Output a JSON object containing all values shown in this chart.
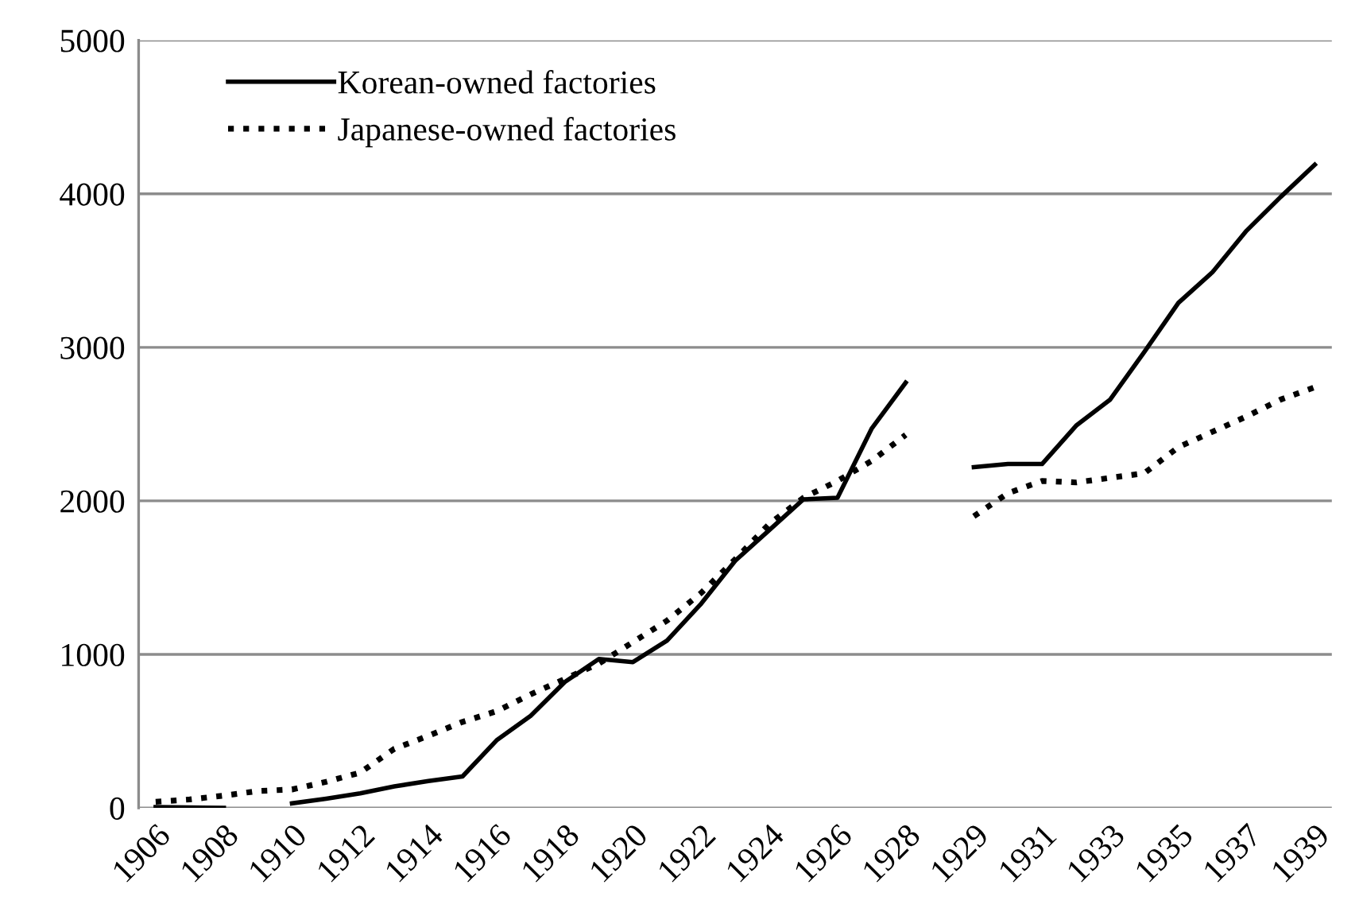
{
  "chart_data": {
    "type": "line",
    "categories": [
      "1906",
      null,
      "1908",
      null,
      "1910",
      null,
      "1912",
      null,
      "1914",
      null,
      "1916",
      null,
      "1918",
      null,
      "1920",
      null,
      "1922",
      null,
      "1924",
      null,
      "1926",
      null,
      "1928",
      null,
      "1929",
      null,
      "1931",
      null,
      "1933",
      null,
      "1935",
      null,
      "1937",
      null,
      "1939"
    ],
    "series": [
      {
        "name": "Korean-owned factories",
        "color": "#000000",
        "line_style": "solid",
        "values": [
          5,
          3,
          0,
          null,
          30,
          60,
          95,
          140,
          175,
          205,
          440,
          600,
          820,
          970,
          950,
          1090,
          1330,
          1610,
          1810,
          2010,
          2020,
          2470,
          2770,
          null,
          2220,
          2240,
          2240,
          2490,
          2660,
          2970,
          3290,
          3490,
          3760,
          3980,
          4190
        ]
      },
      {
        "name": "Japanese-owned factories",
        "color": "#000000",
        "line_style": "dotted",
        "values": [
          40,
          55,
          80,
          110,
          120,
          170,
          230,
          385,
          470,
          560,
          630,
          740,
          840,
          940,
          1080,
          1220,
          1400,
          1620,
          1850,
          2020,
          2130,
          2260,
          2430,
          null,
          1900,
          2050,
          2130,
          2120,
          2150,
          2180,
          2350,
          2450,
          2550,
          2660,
          2740
        ]
      }
    ],
    "ylim": [
      0,
      5000
    ],
    "yticks": [
      0,
      1000,
      2000,
      3000,
      4000,
      5000
    ],
    "grid": "y",
    "legend": "top left"
  }
}
